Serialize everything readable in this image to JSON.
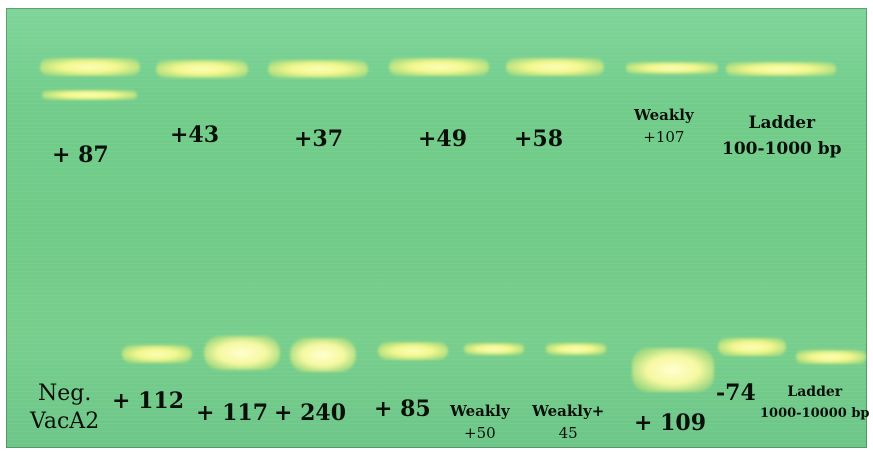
{
  "top_row": {
    "l1": "+ 87",
    "l2": "+43",
    "l3": "+37",
    "l4": "+49",
    "l5": "+58",
    "l6_line1": "Weakly",
    "l6_line2": "+107",
    "ladder_line1": "Ladder",
    "ladder_line2": "100-1000 bp"
  },
  "bottom_row": {
    "neg_line1": "Neg.",
    "neg_line2": "VacA2",
    "b1": "+ 112",
    "b2": "+ 117",
    "b3": "+ 240",
    "b4": "+ 85",
    "b5_line1": "Weakly",
    "b5_line2": "+50",
    "b6_line1": "Weakly+",
    "b6_line2": "45",
    "b7": "+ 109",
    "b8": "-74",
    "ladder_line1": "Ladder",
    "ladder_line2": "1000-10000 bp"
  }
}
